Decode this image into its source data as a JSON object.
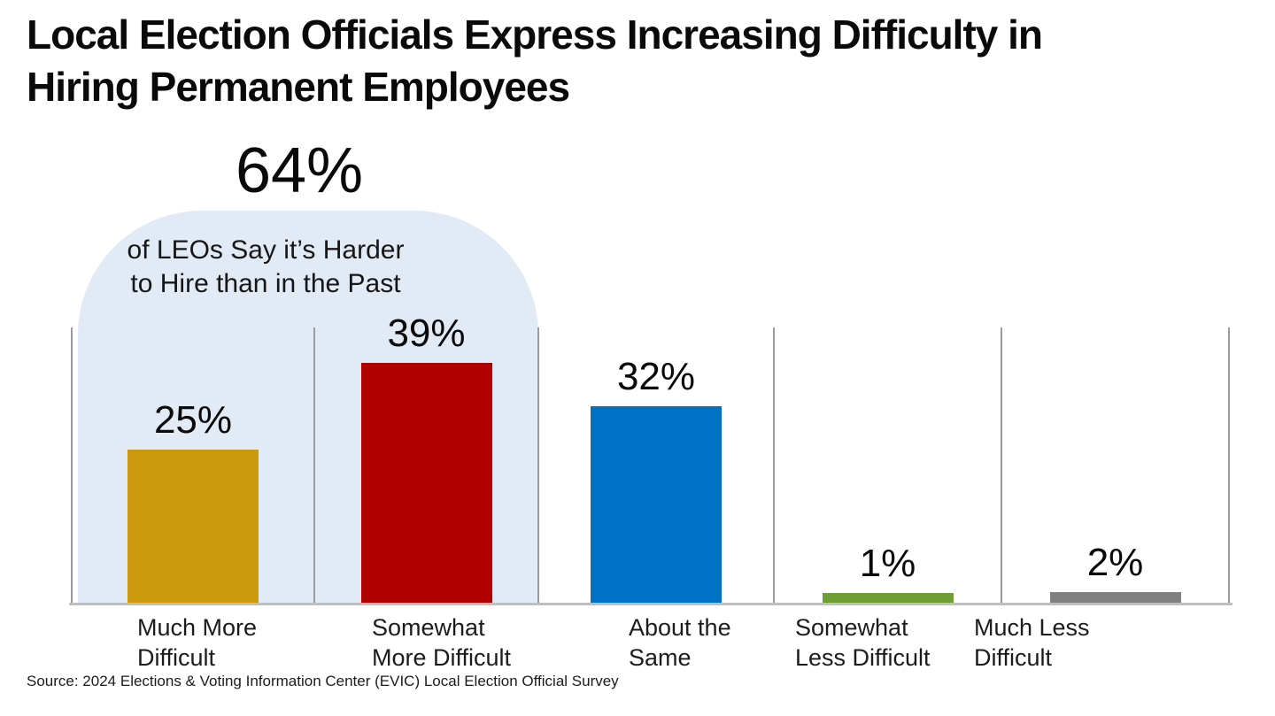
{
  "title": {
    "line1": "Local Election Officials Express Increasing Difficulty in",
    "line2": "Hiring Permanent Employees"
  },
  "callout": {
    "value": "64%",
    "line1": "of LEOs Say it’s Harder",
    "line2": "to Hire than in the Past",
    "highlight_color": "#e2eaf6"
  },
  "source": "Source: 2024 Elections & Voting Information Center (EVIC) Local Election Official Survey",
  "chart_data": {
    "type": "bar",
    "title": "Local Election Officials Express Increasing Difficulty in Hiring Permanent Employees",
    "categories": [
      "Much More Difficult",
      "Somewhat More Difficult",
      "About the Same",
      "Somewhat Less Difficult",
      "Much Less Difficult"
    ],
    "categories_wrapped": [
      [
        "Much More",
        "Difficult"
      ],
      [
        "Somewhat",
        "More Difficult"
      ],
      [
        "About the",
        "Same"
      ],
      [
        "Somewhat",
        "Less Difficult"
      ],
      [
        "Much Less",
        "Difficult"
      ]
    ],
    "values": [
      25,
      39,
      32,
      1,
      2
    ],
    "value_labels": [
      "25%",
      "39%",
      "32%",
      "1%",
      "2%"
    ],
    "bar_colors": [
      "#cb990d",
      "#b00000",
      "#0072c6",
      "#6f9e34",
      "#808080"
    ],
    "xlabel": "",
    "ylabel": "",
    "ylim": [
      0,
      44
    ],
    "grid": "vertical category separators only, no y-axis ticks",
    "legend": "none",
    "annotation": {
      "value": "64%",
      "text": "of LEOs Say it’s Harder to Hire than in the Past",
      "covers": [
        "Much More Difficult",
        "Somewhat More Difficult"
      ],
      "highlight_color": "#e2eaf6"
    }
  }
}
